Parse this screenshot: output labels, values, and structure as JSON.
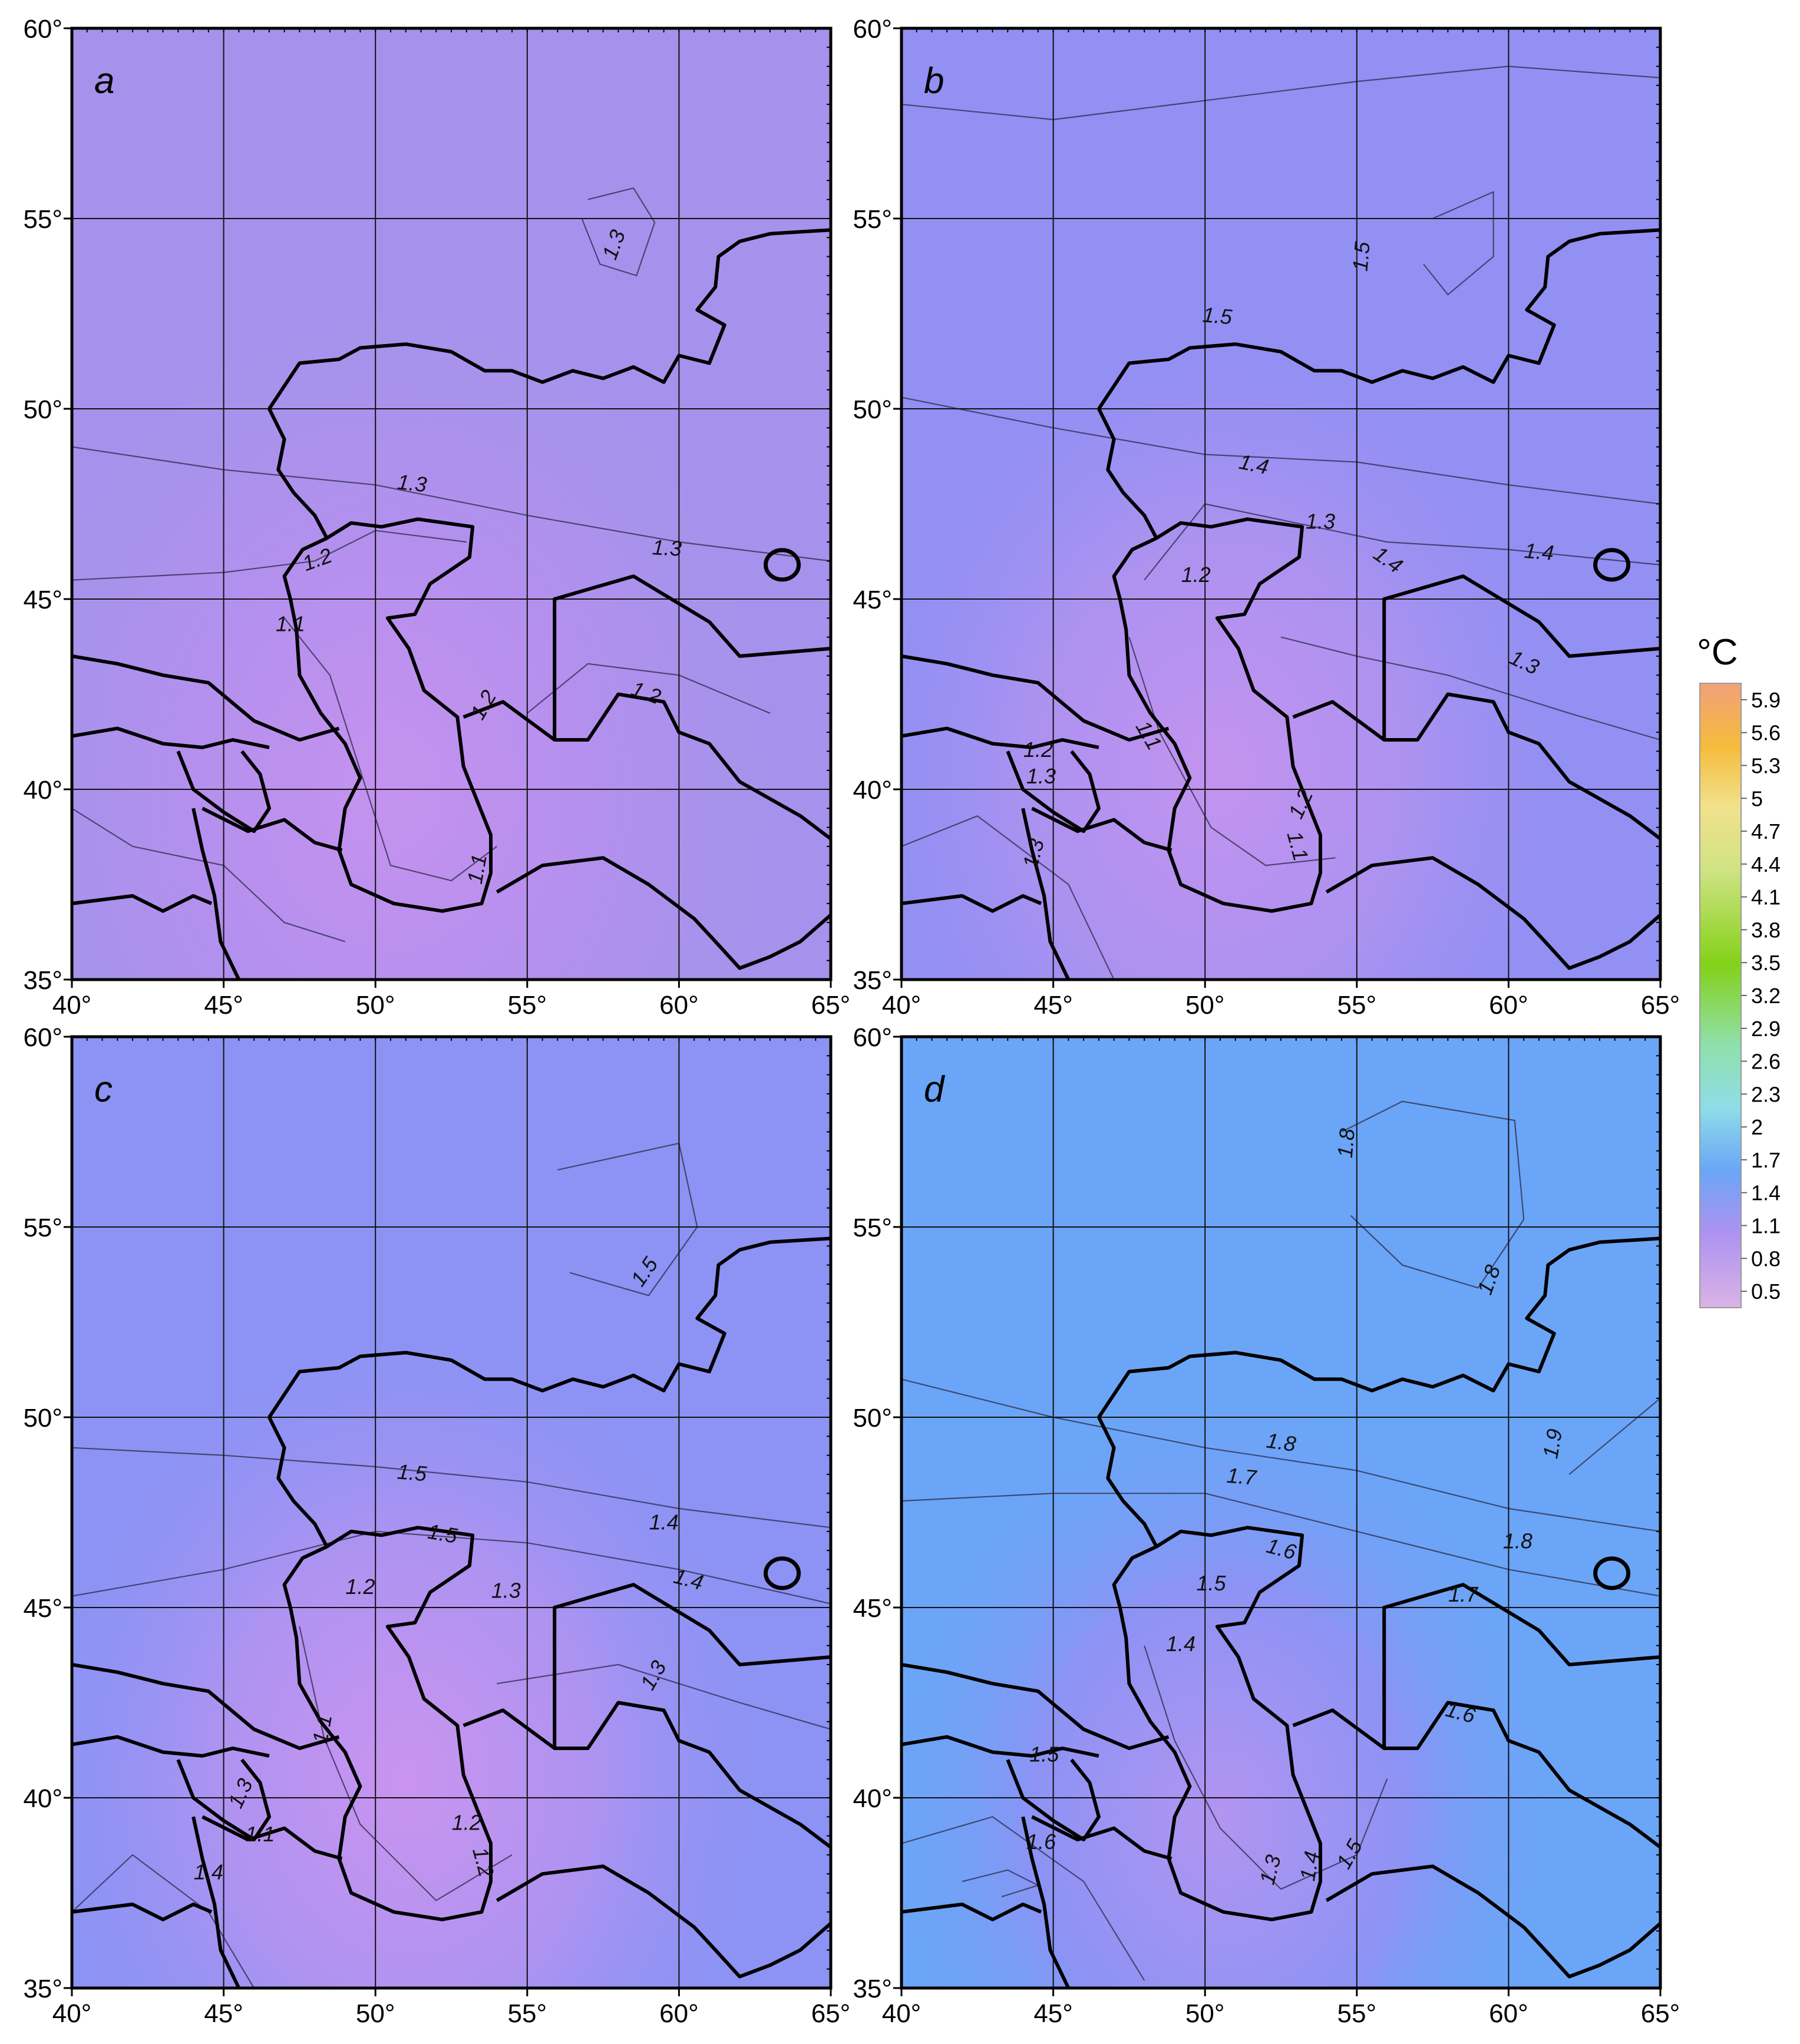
{
  "panels": [
    {
      "letter": "a",
      "contour_labels": [
        "1.3",
        "1.3",
        "1.3",
        "1.2",
        "1.1",
        "1.2",
        "1.2",
        "1.1"
      ]
    },
    {
      "letter": "b",
      "contour_labels": [
        "1.5",
        "1.5",
        "1.4",
        "1.4",
        "1.3",
        "1.4",
        "1.2",
        "1.3",
        "1.3",
        "1.1",
        "1.2",
        "1.2",
        "1.1",
        "1.3"
      ]
    },
    {
      "letter": "c",
      "contour_labels": [
        "1.5",
        "1.5",
        "1.4",
        "1.5",
        "1.4",
        "1.2",
        "1.3",
        "1.3",
        "1.1",
        "1.3",
        "1.2",
        "1.1",
        "1.2",
        "1.4"
      ]
    },
    {
      "letter": "d",
      "contour_labels": [
        "1.8",
        "1.8",
        "1.9",
        "1.8",
        "1.7",
        "1.8",
        "1.6",
        "1.5",
        "1.7",
        "1.4",
        "1.5",
        "1.6",
        "1.3",
        "1.4",
        "1.5",
        "1.6"
      ]
    }
  ],
  "axes": {
    "lat_ticks": [
      "35°",
      "40°",
      "45°",
      "50°",
      "55°",
      "60°"
    ],
    "lon_ticks": [
      "40°",
      "45°",
      "50°",
      "55°",
      "60°",
      "65°"
    ],
    "lat_range": [
      35,
      60
    ],
    "lon_range": [
      40,
      65
    ]
  },
  "colorbar": {
    "unit": "°C",
    "labels": [
      "5.9",
      "5.6",
      "5.3",
      "5",
      "4.7",
      "4.4",
      "4.1",
      "3.8",
      "3.5",
      "3.2",
      "2.9",
      "2.6",
      "2.3",
      "2",
      "1.7",
      "1.4",
      "1.1",
      "0.8",
      "0.5"
    ],
    "colors": [
      "#f2a07a",
      "#f3ab66",
      "#f5bb3c",
      "#f6cd2a",
      "#f3dc58",
      "#f1e28d",
      "#eaeaa0",
      "#cfe383",
      "#a7da4c",
      "#84d118",
      "#8dd64a",
      "#8fe0ac",
      "#8fdde8",
      "#82c9f1",
      "#6aa6f6",
      "#8d8ef5",
      "#ad92f0",
      "#c49ae6",
      "#dab3e6"
    ]
  },
  "colors": {
    "grid": "#000000",
    "background": "#ffffff",
    "panel_a": "#a692ec",
    "panel_b": "#9290f3",
    "panel_c": "#8c93f4",
    "panel_d": "#6ba5f7",
    "warm_low": "#c392ef"
  }
}
